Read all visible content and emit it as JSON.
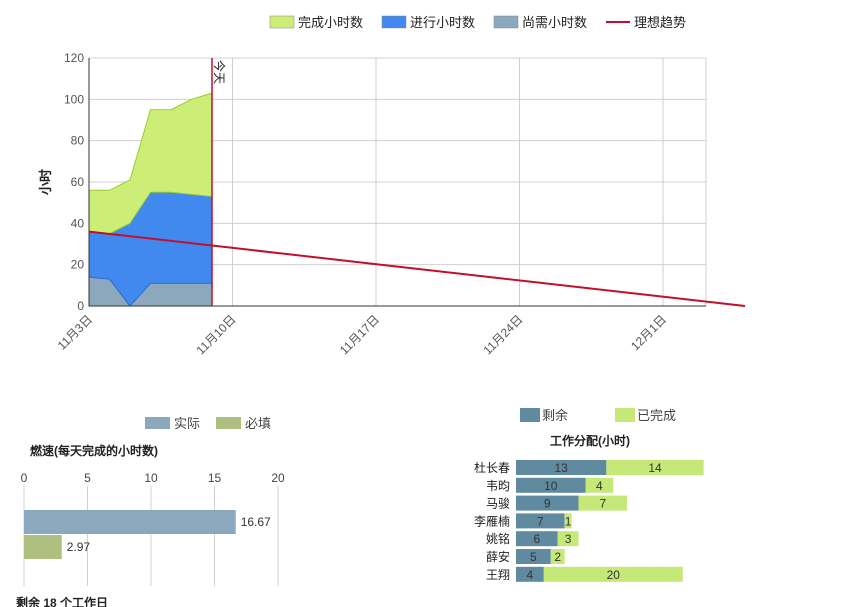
{
  "chart_data": [
    {
      "type": "area",
      "id": "burndown",
      "ylabel": "小时",
      "ylim": [
        0,
        120
      ],
      "yticks": [
        0,
        20,
        40,
        60,
        80,
        100,
        120
      ],
      "xticks": [
        "11月3日",
        "11月10日",
        "11月17日",
        "11月24日",
        "12月1日"
      ],
      "today_label": "今天",
      "grid": true,
      "legend_position": "top-right",
      "x": [
        "11月3日",
        "11月4日",
        "11月5日",
        "11月6日",
        "11月7日",
        "11月8日",
        "11月9日"
      ],
      "series": [
        {
          "name": "尚需小时数",
          "color": "#8BA8BC",
          "values": [
            14,
            13,
            0,
            11,
            11,
            11,
            11
          ]
        },
        {
          "name": "进行小时数",
          "color": "#4189EE",
          "values": [
            22,
            22,
            40,
            44,
            44,
            43,
            42
          ]
        },
        {
          "name": "完成小时数",
          "color": "#CCEE77",
          "values": [
            20,
            21,
            21,
            40,
            40,
            46,
            50
          ]
        }
      ],
      "ideal_trend": {
        "name": "理想趋势",
        "color": "#C0102A",
        "start": {
          "x": "11月3日",
          "y": 36
        },
        "end": {
          "x": "12月5日",
          "y": 0
        }
      }
    },
    {
      "type": "bar",
      "id": "velocity",
      "title": "燃速(每天完成的小时数)",
      "xlim": [
        0,
        20
      ],
      "xticks": [
        0,
        5,
        10,
        15,
        20
      ],
      "grid": true,
      "legend_position": "top",
      "series": [
        {
          "name": "实际",
          "color": "#8BA8BC",
          "value": 16.67
        },
        {
          "name": "必填",
          "color": "#AEBF80",
          "value": 2.97
        }
      ],
      "footer": "剩余 18 个工作日"
    },
    {
      "type": "bar",
      "id": "allocation",
      "title": "工作分配(小时)",
      "stacked": true,
      "legend_position": "top",
      "categories": [
        "杜长春",
        "韦昀",
        "马骏",
        "李雁楠",
        "姚铭",
        "薛安",
        "王翔"
      ],
      "series": [
        {
          "name": "剩余",
          "color": "#5F8AA0",
          "values": [
            13,
            10,
            9,
            7,
            6,
            5,
            4
          ]
        },
        {
          "name": "已完成",
          "color": "#C5E878",
          "values": [
            14,
            4,
            7,
            1,
            3,
            2,
            20
          ]
        }
      ]
    }
  ]
}
